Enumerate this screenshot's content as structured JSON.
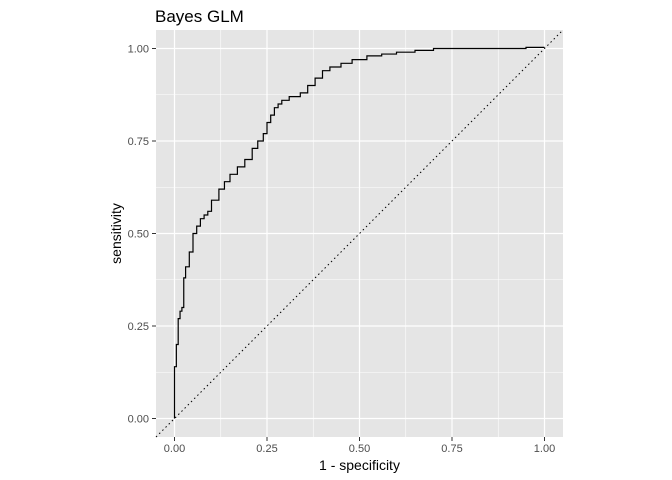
{
  "chart_data": {
    "type": "line",
    "title": "Bayes GLM",
    "xlabel": "1 - specificity",
    "ylabel": "sensitivity",
    "xlim": [
      -0.05,
      1.05
    ],
    "ylim": [
      -0.05,
      1.05
    ],
    "x_ticks": [
      0.0,
      0.25,
      0.5,
      0.75,
      1.0
    ],
    "x_tick_labels": [
      "0.00",
      "0.25",
      "0.50",
      "0.75",
      "1.00"
    ],
    "y_ticks": [
      0.0,
      0.25,
      0.5,
      0.75,
      1.0
    ],
    "y_tick_labels": [
      "0.00",
      "0.25",
      "0.50",
      "0.75",
      "1.00"
    ],
    "grid": true,
    "background_color": "#e5e5e5",
    "grid_color": "#ffffff",
    "line_color": "#000000",
    "series": [
      {
        "style": "step",
        "x": [
          0.0,
          0.0,
          0.005,
          0.005,
          0.01,
          0.01,
          0.015,
          0.015,
          0.02,
          0.02,
          0.025,
          0.025,
          0.03,
          0.03,
          0.04,
          0.04,
          0.05,
          0.05,
          0.06,
          0.06,
          0.07,
          0.07,
          0.08,
          0.08,
          0.09,
          0.09,
          0.1,
          0.1,
          0.12,
          0.12,
          0.135,
          0.135,
          0.15,
          0.15,
          0.17,
          0.17,
          0.19,
          0.19,
          0.21,
          0.21,
          0.225,
          0.225,
          0.24,
          0.24,
          0.25,
          0.25,
          0.26,
          0.26,
          0.27,
          0.27,
          0.28,
          0.28,
          0.29,
          0.29,
          0.31,
          0.31,
          0.34,
          0.34,
          0.36,
          0.36,
          0.38,
          0.38,
          0.4,
          0.4,
          0.42,
          0.42,
          0.45,
          0.45,
          0.48,
          0.48,
          0.52,
          0.52,
          0.56,
          0.56,
          0.6,
          0.6,
          0.65,
          0.65,
          0.7,
          0.7,
          0.8,
          0.8,
          0.95,
          0.95,
          1.0
        ],
        "y": [
          0.0,
          0.14,
          0.14,
          0.2,
          0.2,
          0.27,
          0.27,
          0.29,
          0.29,
          0.3,
          0.3,
          0.38,
          0.38,
          0.41,
          0.41,
          0.45,
          0.45,
          0.5,
          0.5,
          0.52,
          0.52,
          0.54,
          0.54,
          0.55,
          0.55,
          0.56,
          0.56,
          0.59,
          0.59,
          0.62,
          0.62,
          0.64,
          0.64,
          0.66,
          0.66,
          0.68,
          0.68,
          0.7,
          0.7,
          0.73,
          0.73,
          0.75,
          0.75,
          0.77,
          0.77,
          0.8,
          0.8,
          0.82,
          0.82,
          0.84,
          0.84,
          0.85,
          0.85,
          0.86,
          0.86,
          0.87,
          0.87,
          0.88,
          0.88,
          0.9,
          0.9,
          0.92,
          0.92,
          0.94,
          0.94,
          0.95,
          0.95,
          0.96,
          0.96,
          0.97,
          0.97,
          0.98,
          0.98,
          0.985,
          0.985,
          0.99,
          0.99,
          0.995,
          0.995,
          1.0,
          1.0,
          1.0,
          1.0,
          1.003,
          1.003
        ]
      }
    ],
    "reference_line": {
      "style": "dotted",
      "x": [
        -0.05,
        1.05
      ],
      "y": [
        -0.05,
        1.05
      ]
    }
  }
}
